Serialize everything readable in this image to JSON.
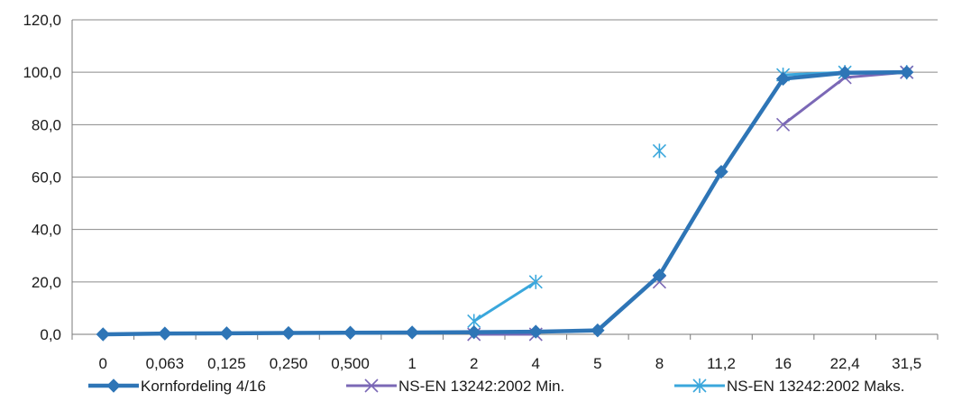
{
  "chart_data": {
    "type": "line",
    "categories": [
      "0",
      "0,063",
      "0,125",
      "0,250",
      "0,500",
      "1",
      "2",
      "4",
      "5",
      "8",
      "11,2",
      "16",
      "22,4",
      "31,5"
    ],
    "ylim": [
      0,
      120
    ],
    "yticks": [
      "0,0",
      "20,0",
      "40,0",
      "60,0",
      "80,0",
      "100,0",
      "120,0"
    ],
    "grid": "horizontal",
    "legend_position": "bottom",
    "series": [
      {
        "name": "Kornfordeling 4/16",
        "color": "#2e75b6",
        "marker": "diamond",
        "values": [
          0.0,
          0.3,
          0.4,
          0.5,
          0.6,
          0.7,
          0.8,
          1.0,
          1.5,
          22.5,
          62.0,
          97.5,
          99.8,
          100.0
        ]
      },
      {
        "name": "NS-EN 13242:2002 Min.",
        "color": "#7b68b6",
        "marker": "x",
        "values": [
          null,
          null,
          null,
          null,
          null,
          null,
          0.0,
          0.0,
          null,
          20.0,
          null,
          80.0,
          98.0,
          100.0
        ]
      },
      {
        "name": "NS-EN 13242:2002 Maks.",
        "color": "#3aa7dc",
        "marker": "asterisk",
        "values": [
          null,
          null,
          null,
          null,
          null,
          null,
          5.0,
          20.0,
          null,
          70.0,
          null,
          99.0,
          100.0,
          100.0
        ]
      }
    ]
  }
}
